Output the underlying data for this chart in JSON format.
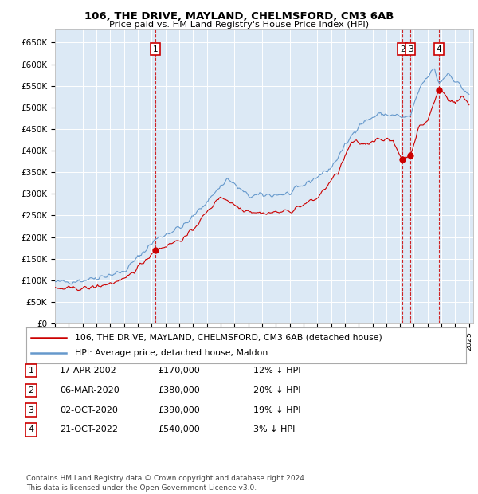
{
  "title": "106, THE DRIVE, MAYLAND, CHELMSFORD, CM3 6AB",
  "subtitle": "Price paid vs. HM Land Registry's House Price Index (HPI)",
  "ylabel_ticks": [
    "£0",
    "£50K",
    "£100K",
    "£150K",
    "£200K",
    "£250K",
    "£300K",
    "£350K",
    "£400K",
    "£450K",
    "£500K",
    "£550K",
    "£600K",
    "£650K"
  ],
  "ytick_values": [
    0,
    50000,
    100000,
    150000,
    200000,
    250000,
    300000,
    350000,
    400000,
    450000,
    500000,
    550000,
    600000,
    650000
  ],
  "ylim": [
    0,
    680000
  ],
  "line1_color": "#cc0000",
  "line2_color": "#6699cc",
  "plot_background": "#dce9f5",
  "grid_color": "#ffffff",
  "sales": [
    {
      "date": 2002.29,
      "price": 170000,
      "label": "1"
    },
    {
      "date": 2020.17,
      "price": 380000,
      "label": "2"
    },
    {
      "date": 2020.75,
      "price": 390000,
      "label": "3"
    },
    {
      "date": 2022.8,
      "price": 540000,
      "label": "4"
    }
  ],
  "legend_line1": "106, THE DRIVE, MAYLAND, CHELMSFORD, CM3 6AB (detached house)",
  "legend_line2": "HPI: Average price, detached house, Maldon",
  "table_data": [
    {
      "num": "1",
      "date": "17-APR-2002",
      "price": "£170,000",
      "pct": "12% ↓ HPI"
    },
    {
      "num": "2",
      "date": "06-MAR-2020",
      "price": "£380,000",
      "pct": "20% ↓ HPI"
    },
    {
      "num": "3",
      "date": "02-OCT-2020",
      "price": "£390,000",
      "pct": "19% ↓ HPI"
    },
    {
      "num": "4",
      "date": "21-OCT-2022",
      "price": "£540,000",
      "pct": "3% ↓ HPI"
    }
  ],
  "footer": "Contains HM Land Registry data © Crown copyright and database right 2024.\nThis data is licensed under the Open Government Licence v3.0.",
  "dashed_line_color": "#cc0000"
}
